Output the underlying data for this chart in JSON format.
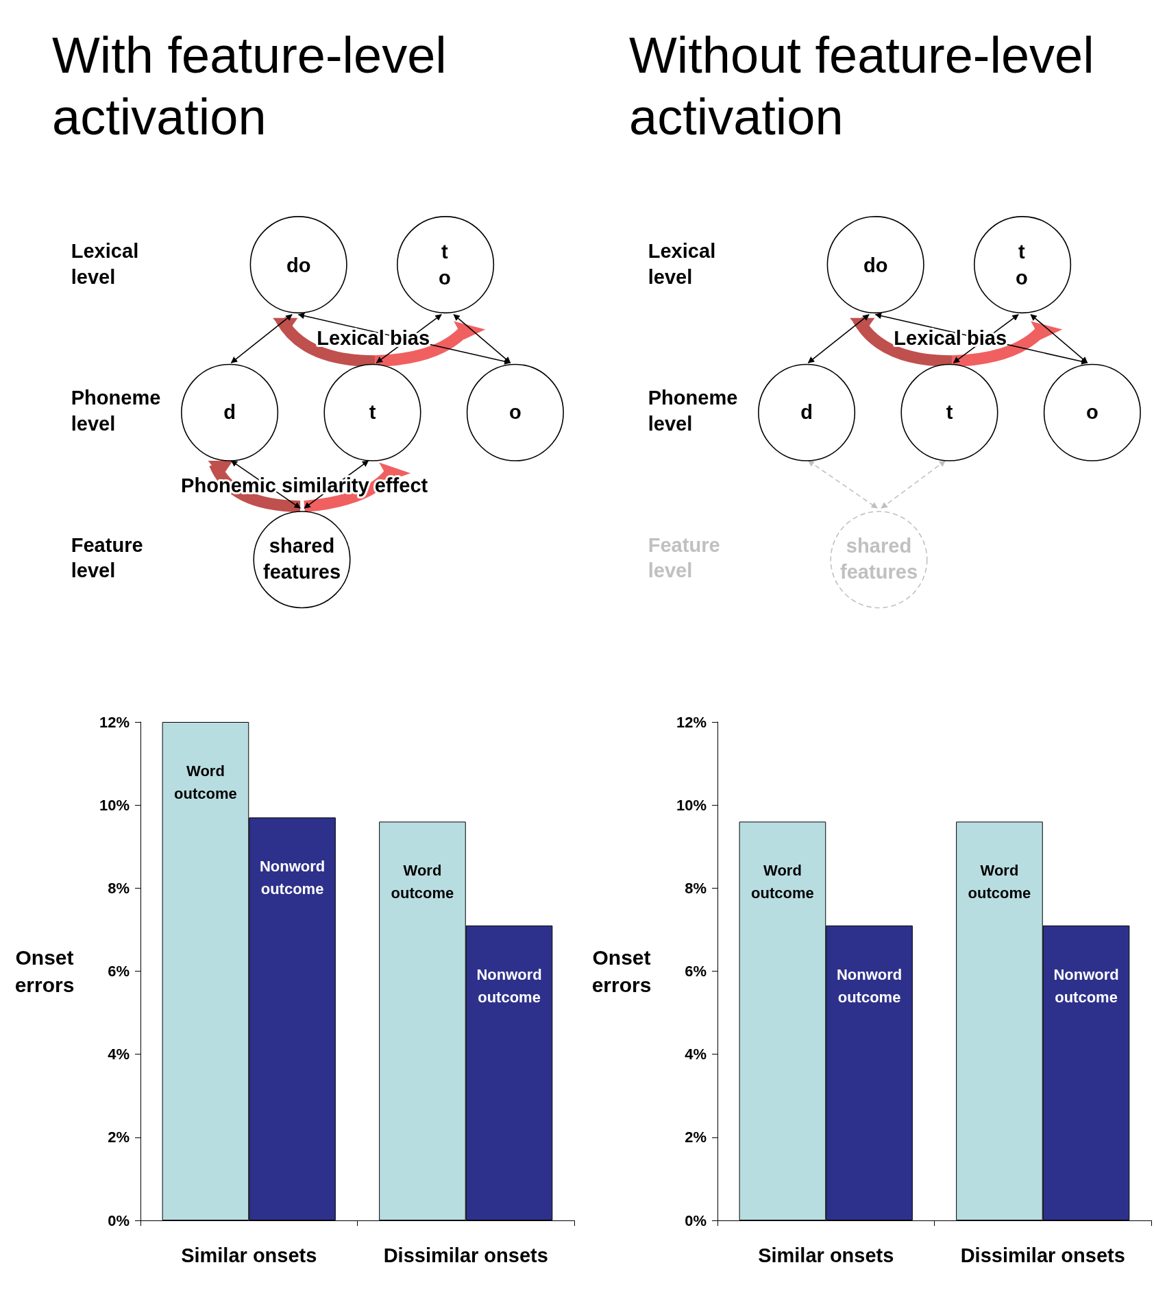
{
  "chart_data": [
    {
      "type": "bar",
      "title": "With feature-level activation",
      "ylabel": "Onset errors",
      "categories": [
        "Similar onsets",
        "Dissimilar onsets"
      ],
      "series": [
        {
          "name": "Word outcome",
          "color": "#b8dde1",
          "values": [
            12,
            9.6
          ]
        },
        {
          "name": "Nonword outcome",
          "color": "#2e318b",
          "values": [
            9.7,
            7.1
          ]
        }
      ],
      "ylim": [
        0,
        12
      ],
      "yticks": [
        {
          "value": 0,
          "label": "0%"
        },
        {
          "value": 2,
          "label": "2%"
        },
        {
          "value": 4,
          "label": "4%"
        },
        {
          "value": 6,
          "label": "6%"
        },
        {
          "value": 8,
          "label": "8%"
        },
        {
          "value": 10,
          "label": "10%"
        },
        {
          "value": 12,
          "label": "12%"
        }
      ],
      "annotations": [
        "Lexical level",
        "Phoneme level",
        "Feature level",
        "do",
        "t o",
        "d",
        "t",
        "o",
        "shared features",
        "Lexical bias",
        "Phonemic similarity effect"
      ]
    },
    {
      "type": "bar",
      "title": "Without feature-level activation",
      "ylabel": "Onset errors",
      "categories": [
        "Similar onsets",
        "Dissimilar onsets"
      ],
      "series": [
        {
          "name": "Word outcome",
          "color": "#b8dde1",
          "values": [
            9.6,
            9.6
          ]
        },
        {
          "name": "Nonword outcome",
          "color": "#2e318b",
          "values": [
            7.1,
            7.1
          ]
        }
      ],
      "ylim": [
        0,
        12
      ],
      "yticks": [
        {
          "value": 0,
          "label": "0%"
        },
        {
          "value": 2,
          "label": "2%"
        },
        {
          "value": 4,
          "label": "4%"
        },
        {
          "value": 6,
          "label": "6%"
        },
        {
          "value": 8,
          "label": "8%"
        },
        {
          "value": 10,
          "label": "10%"
        },
        {
          "value": 12,
          "label": "12%"
        }
      ],
      "annotations": [
        "Lexical level",
        "Phoneme level",
        "Feature level",
        "do",
        "t o",
        "d",
        "t",
        "o",
        "shared features",
        "Lexical bias"
      ]
    }
  ]
}
